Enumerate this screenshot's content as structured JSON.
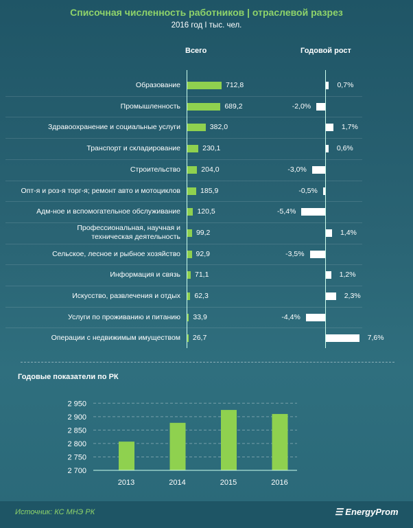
{
  "chart_data": [
    {
      "type": "bar",
      "orientation": "horizontal",
      "title": "Списочная численность работников | отраслевой разрез",
      "subtitle": "2016 год I тыс. чел.",
      "column_headers": [
        "Всего",
        "Годовой рост"
      ],
      "categories": [
        "Образование",
        "Промышленность",
        "Здравоохранение и социальные услуги",
        "Транспорт и складирование",
        "Строительство",
        "Опт-я и роз-я торг-я; ремонт авто и мотоциклов",
        "Адм-ное и вспомогательное обслуживание",
        "Профессиональная, научная и техническая деятельность",
        "Сельское, лесное и рыбное хозяйство",
        "Информация и связь",
        "Искусство, развлечения и отдых",
        "Услуги по проживанию и питанию",
        "Операции с недвижимым имуществом"
      ],
      "series": [
        {
          "name": "Всего",
          "values": [
            712.8,
            689.2,
            382.0,
            230.1,
            204.0,
            185.9,
            120.5,
            99.2,
            92.9,
            71.1,
            62.3,
            33.9,
            26.7
          ],
          "labels": [
            "712,8",
            "689,2",
            "382,0",
            "230,1",
            "204,0",
            "185,9",
            "120,5",
            "99,2",
            "92,9",
            "71,1",
            "62,3",
            "33,9",
            "26,7"
          ],
          "color": "#8fd14f"
        },
        {
          "name": "Годовой рост",
          "values": [
            0.7,
            -2.0,
            1.7,
            0.6,
            -3.0,
            -0.5,
            -5.4,
            1.4,
            -3.5,
            1.2,
            2.3,
            -4.4,
            7.6
          ],
          "labels": [
            "0,7%",
            "-2,0%",
            "1,7%",
            "0,6%",
            "-3,0%",
            "-0,5%",
            "-5,4%",
            "1,4%",
            "-3,5%",
            "1,2%",
            "2,3%",
            "-4,4%",
            "7,6%"
          ],
          "color": "#ffffff"
        }
      ]
    },
    {
      "type": "bar",
      "title": "Годовые показатели по РК",
      "categories": [
        "2013",
        "2014",
        "2015",
        "2016"
      ],
      "values": [
        2807,
        2877,
        2925,
        2910
      ],
      "ylim": [
        2700,
        2950
      ],
      "yticks": [
        "2 700",
        "2 750",
        "2 800",
        "2 850",
        "2 900",
        "2 950"
      ],
      "grid": true,
      "color": "#8fd14f"
    }
  ],
  "footer": {
    "source": "Источник: КС МНЭ РК",
    "logo": "EnergyProm"
  }
}
